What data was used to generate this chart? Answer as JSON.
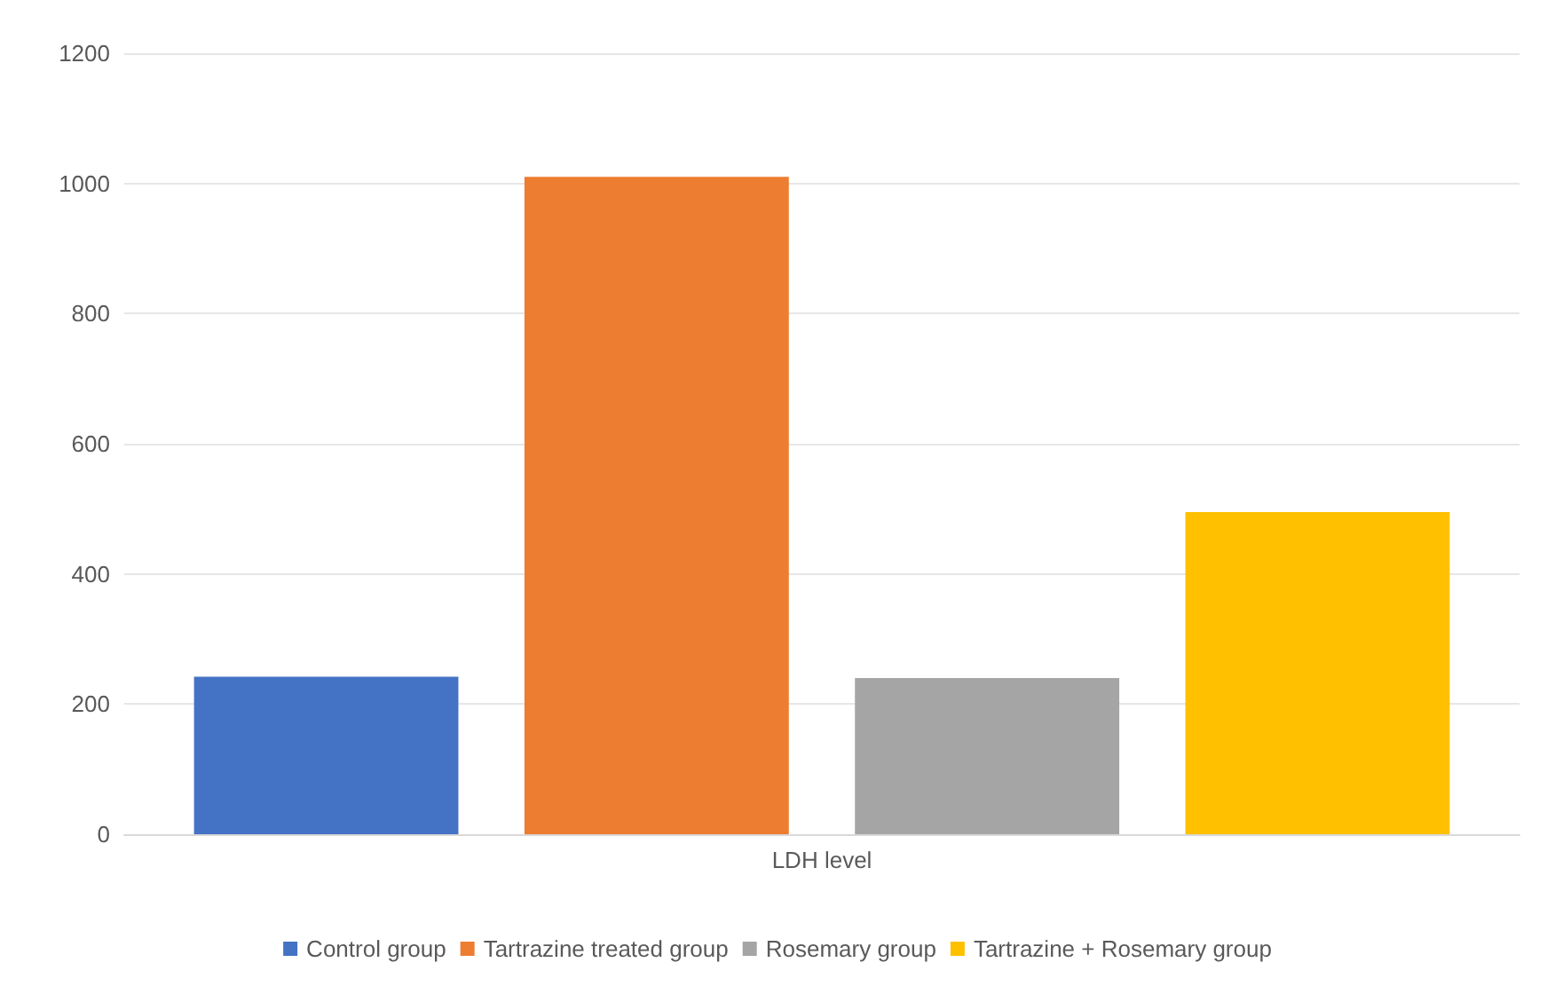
{
  "chart_data": {
    "type": "bar",
    "categories": [
      "LDH level"
    ],
    "series": [
      {
        "name": "Control group",
        "color": "#4472c4",
        "values": [
          242
        ]
      },
      {
        "name": "Tartrazine treated group",
        "color": "#ed7d31",
        "values": [
          1010
        ]
      },
      {
        "name": "Rosemary group",
        "color": "#a5a5a5",
        "values": [
          240
        ]
      },
      {
        "name": "Tartrazine + Rosemary group",
        "color": "#ffc000",
        "values": [
          495
        ]
      }
    ],
    "ylim": [
      0,
      1200
    ],
    "yticks": [
      0,
      200,
      400,
      600,
      800,
      1000,
      1200
    ],
    "grid": "y",
    "legend": "bottom"
  }
}
